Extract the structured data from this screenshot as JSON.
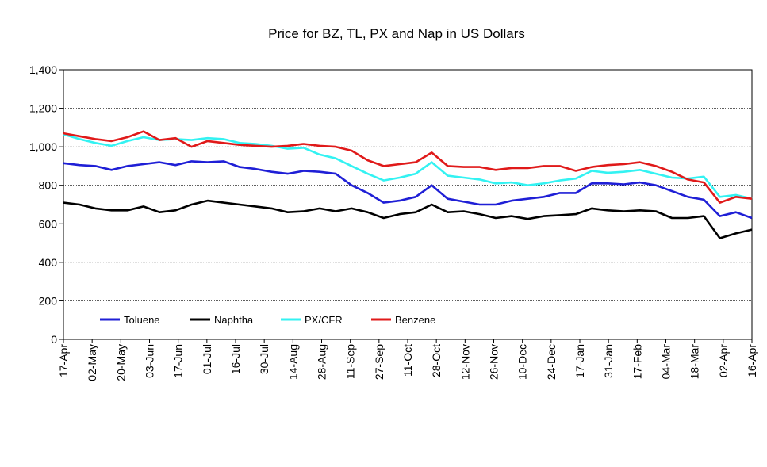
{
  "chart_data": {
    "type": "line",
    "title": "Price for BZ, TL, PX and Nap in US Dollars",
    "xlabel": "",
    "ylabel": "",
    "ylim": [
      0,
      1400
    ],
    "yticks": [
      0,
      200,
      400,
      600,
      800,
      1000,
      1200,
      1400
    ],
    "ytick_labels": [
      "0",
      "200",
      "400",
      "600",
      "800",
      "1,000",
      "1,200",
      "1,400"
    ],
    "xtick_labels": [
      "17-Apr",
      "02-May",
      "20-May",
      "03-Jun",
      "17-Jun",
      "01-Jul",
      "16-Jul",
      "30-Jul",
      "14-Aug",
      "28-Aug",
      "11-Sep",
      "27-Sep",
      "11-Oct",
      "28-Oct",
      "12-Nov",
      "26-Nov",
      "10-Dec",
      "24-Dec",
      "17-Jan",
      "31-Jan",
      "17-Feb",
      "04-Mar",
      "18-Mar",
      "02-Apr",
      "16-Apr"
    ],
    "grid": "horizontal",
    "legend_position": "bottom-left",
    "series": [
      {
        "name": "Toluene",
        "color": "#1f1fd6",
        "values": [
          915,
          905,
          900,
          880,
          900,
          910,
          920,
          905,
          925,
          920,
          925,
          895,
          885,
          870,
          860,
          875,
          870,
          860,
          800,
          760,
          710,
          720,
          740,
          800,
          730,
          715,
          700,
          700,
          720,
          730,
          740,
          760,
          760,
          810,
          810,
          805,
          815,
          800,
          770,
          740,
          725,
          640,
          660,
          630
        ]
      },
      {
        "name": "Naphtha",
        "color": "#000000",
        "values": [
          710,
          700,
          680,
          670,
          670,
          690,
          660,
          670,
          700,
          720,
          710,
          700,
          690,
          680,
          660,
          665,
          680,
          665,
          680,
          660,
          630,
          650,
          660,
          700,
          660,
          665,
          650,
          630,
          640,
          625,
          640,
          645,
          650,
          680,
          670,
          665,
          670,
          665,
          630,
          630,
          640,
          525,
          550,
          570
        ]
      },
      {
        "name": "PX/CFR",
        "color": "#33f2f2",
        "values": [
          1065,
          1040,
          1020,
          1005,
          1030,
          1050,
          1035,
          1040,
          1035,
          1045,
          1040,
          1020,
          1015,
          1005,
          990,
          995,
          960,
          940,
          900,
          860,
          825,
          840,
          860,
          920,
          850,
          840,
          830,
          810,
          815,
          800,
          810,
          825,
          835,
          875,
          865,
          870,
          880,
          860,
          840,
          835,
          845,
          740,
          750,
          730
        ]
      },
      {
        "name": "Benzene",
        "color": "#e01a1a",
        "values": [
          1070,
          1055,
          1040,
          1030,
          1050,
          1080,
          1035,
          1045,
          1000,
          1030,
          1020,
          1010,
          1005,
          1000,
          1005,
          1015,
          1005,
          1000,
          980,
          930,
          900,
          910,
          920,
          970,
          900,
          895,
          895,
          880,
          890,
          890,
          900,
          900,
          875,
          895,
          905,
          910,
          920,
          900,
          870,
          830,
          815,
          710,
          740,
          730
        ]
      }
    ]
  }
}
